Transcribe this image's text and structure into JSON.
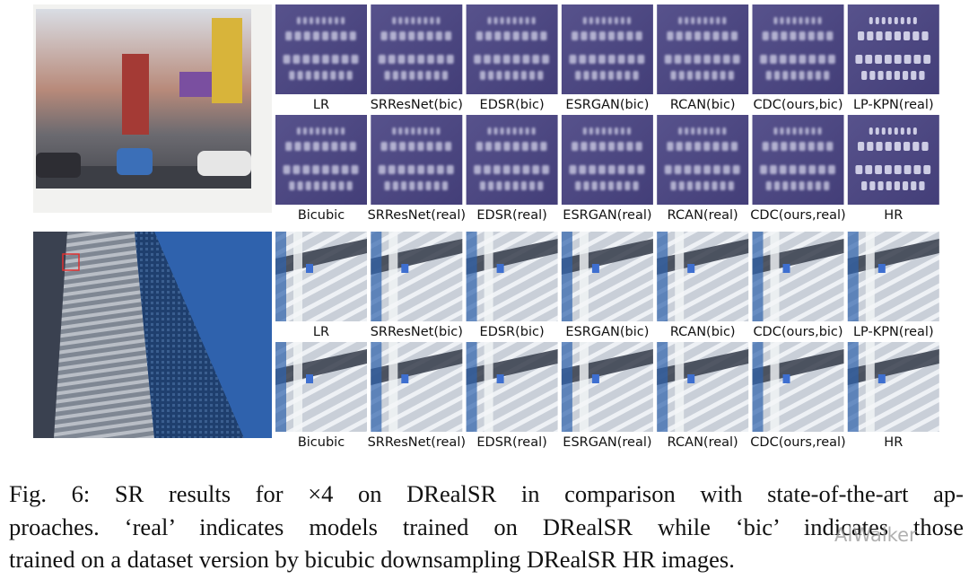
{
  "panels": [
    {
      "rows": [
        {
          "labels": [
            "LR",
            "SRResNet(bic)",
            "EDSR(bic)",
            "ESRGAN(bic)",
            "RCAN(bic)",
            "CDC(ours,bic)",
            "LP-KPN(real)"
          ]
        },
        {
          "labels": [
            "Bicubic",
            "SRResNet(real)",
            "EDSR(real)",
            "ESRGAN(real)",
            "RCAN(real)",
            "CDC(ours,real)",
            "HR"
          ]
        }
      ]
    },
    {
      "rows": [
        {
          "labels": [
            "LR",
            "SRResNet(bic)",
            "EDSR(bic)",
            "ESRGAN(bic)",
            "RCAN(bic)",
            "CDC(ours,bic)",
            "LP-KPN(real)"
          ]
        },
        {
          "labels": [
            "Bicubic",
            "SRResNet(real)",
            "EDSR(real)",
            "ESRGAN(real)",
            "RCAN(real)",
            "CDC(ours,real)",
            "HR"
          ]
        }
      ]
    }
  ],
  "caption": {
    "lines": [
      "Fig. 6: SR results for ×4 on DRealSR in comparison with state-of-the-art ap-",
      "proaches. ‘real’ indicates models trained on DRealSR while ‘bic’ indicates those",
      "trained on a dataset version by bicubic downsampling DRealSR HR images."
    ]
  },
  "watermark": "AIWalker"
}
